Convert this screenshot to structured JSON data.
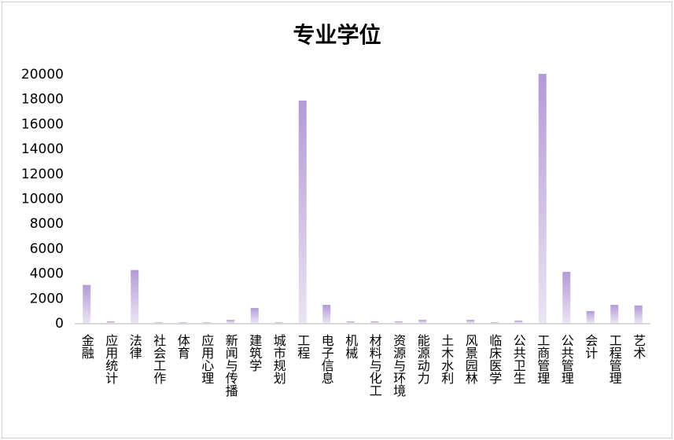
{
  "chart_data": {
    "type": "bar",
    "title": "专业学位",
    "xlabel": "",
    "ylabel": "",
    "ylim": [
      0,
      20000
    ],
    "yticks": [
      0,
      2000,
      4000,
      6000,
      8000,
      10000,
      12000,
      14000,
      16000,
      18000,
      20000
    ],
    "grid": false,
    "categories": [
      "金融",
      "应用统计",
      "法律",
      "社会工作",
      "体育",
      "应用心理",
      "新闻与传播",
      "建筑学",
      "城市规划",
      "工程",
      "电子信息",
      "机械",
      "材料与化工",
      "资源与环境",
      "能源动力",
      "土木水利",
      "风景园林",
      "临床医学",
      "公共卫生",
      "工商管理",
      "公共管理",
      "会计",
      "工程管理",
      "艺术"
    ],
    "values": [
      3050,
      130,
      4250,
      60,
      60,
      60,
      250,
      1200,
      60,
      17850,
      1450,
      130,
      130,
      130,
      250,
      0,
      250,
      60,
      190,
      20000,
      4100,
      950,
      1450,
      1400
    ],
    "colors": {
      "bar_top": "#b39ad6",
      "bar_bottom": "#ebe4f3",
      "axis": "#d9d9d9"
    }
  }
}
